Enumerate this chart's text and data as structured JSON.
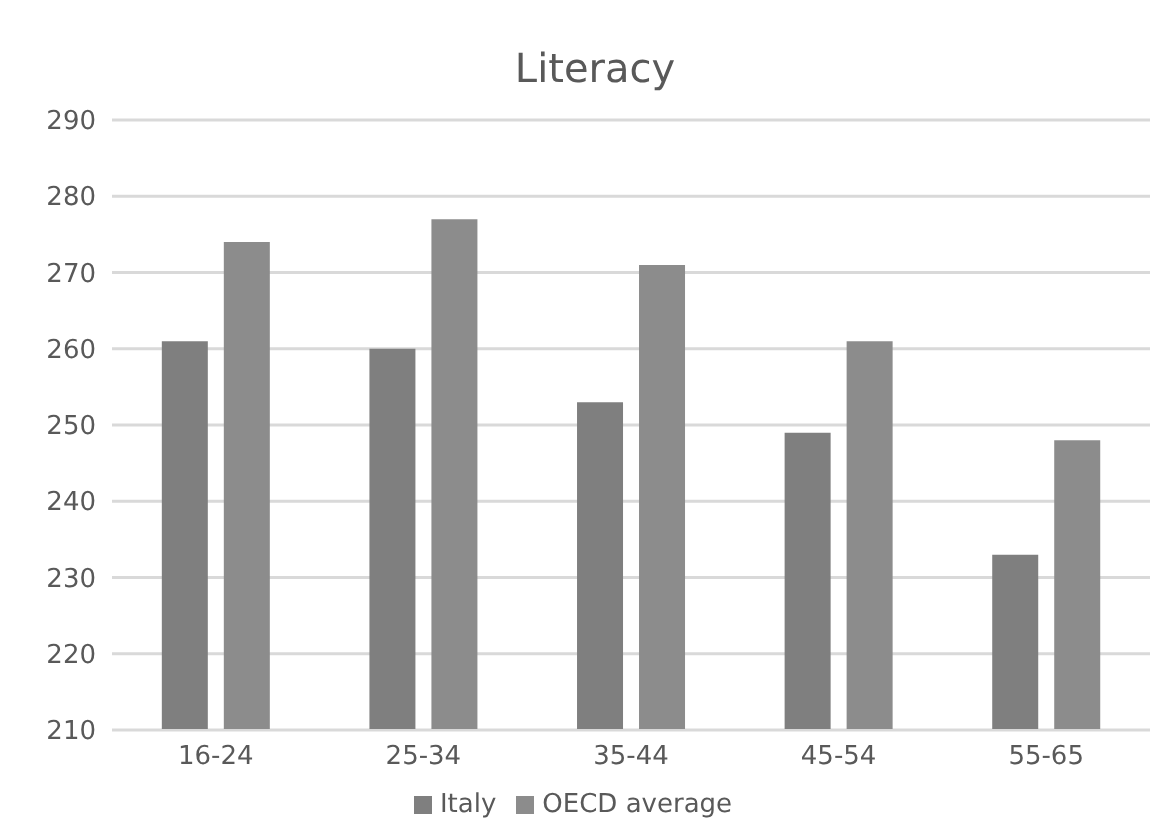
{
  "chart_data": {
    "type": "bar",
    "title": "Literacy",
    "categories": [
      "16-24",
      "25-34",
      "35-44",
      "45-54",
      "55-65"
    ],
    "series": [
      {
        "name": "Italy",
        "color": "#7f7f7f",
        "values": [
          261,
          260,
          253,
          249,
          233
        ]
      },
      {
        "name": "OECD average",
        "color": "#8c8c8c",
        "values": [
          274,
          277,
          271,
          261,
          248
        ]
      }
    ],
    "ylim": [
      210,
      290
    ],
    "yticks": [
      210,
      220,
      230,
      240,
      250,
      260,
      270,
      280,
      290
    ],
    "grid": "y",
    "legend": "bottom"
  }
}
